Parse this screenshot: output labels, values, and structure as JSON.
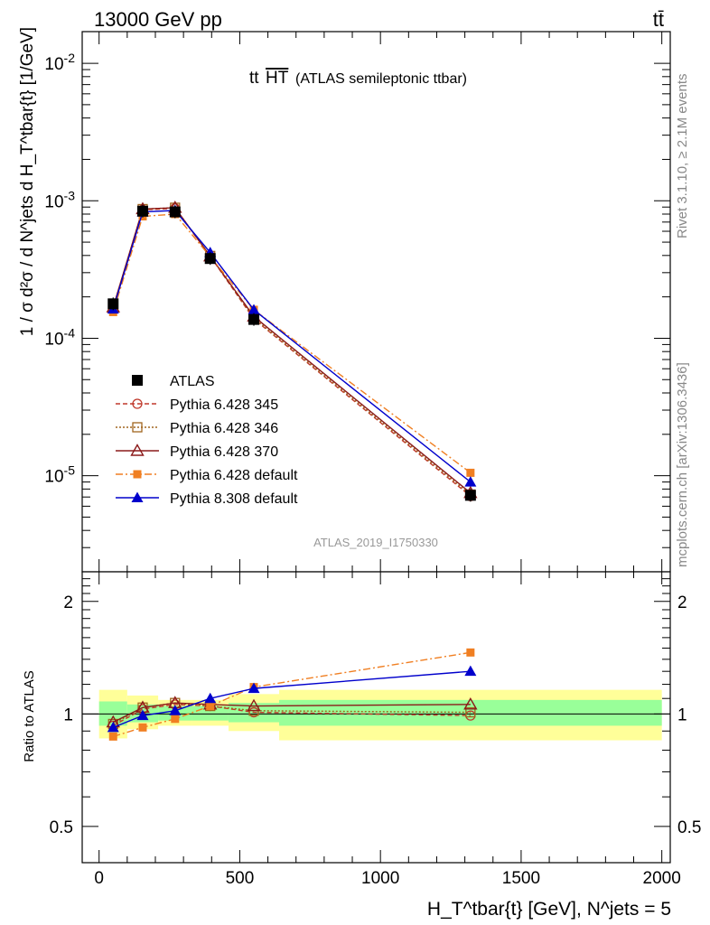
{
  "header": {
    "left": "13000 GeV pp",
    "right": "tt̄"
  },
  "side": {
    "rivet": "Rivet 3.1.10, ≥ 2.1M events",
    "mcplots": "mcplots.cern.ch [arXiv:1306.3436]"
  },
  "chart_data": [
    {
      "type": "line",
      "title_main": "tt",
      "title_over": "HT",
      "title_sub": "(ATLAS semileptonic ttbar)",
      "analysis": "ATLAS_2019_I1750330",
      "ylabel": "1 / σ d²σ / d N^jets d H_T^tbar{t} [1/GeV]",
      "yscale": "log",
      "ylim": [
        2e-06,
        0.017
      ],
      "xlim": [
        -60,
        2030
      ],
      "y_tick_labels": [
        "10^-5",
        "10^-4",
        "10^-3",
        "10^-2"
      ],
      "x": [
        50,
        155,
        270,
        395,
        550,
        1320
      ],
      "series": [
        {
          "name": "ATLAS",
          "color": "#000000",
          "marker": "square-filled",
          "dash": "none",
          "values": [
            0.000178,
            0.00084,
            0.00083,
            0.00038,
            0.000137,
            7.2e-06
          ]
        },
        {
          "name": "Pythia 6.428 345",
          "color": "#c0392b",
          "marker": "circle-open",
          "dash": "5,3",
          "values": [
            0.000165,
            0.00086,
            0.00088,
            0.000395,
            0.000138,
            7.1e-06
          ]
        },
        {
          "name": "Pythia 6.428 346",
          "color": "#a0651e",
          "marker": "square-open",
          "dash": "2,2",
          "values": [
            0.000167,
            0.00087,
            0.00089,
            0.000397,
            0.00014,
            7.3e-06
          ]
        },
        {
          "name": "Pythia 6.428 370",
          "color": "#8b1a1a",
          "marker": "triangle-open",
          "dash": "none",
          "values": [
            0.000168,
            0.00087,
            0.00089,
            0.000395,
            0.000144,
            7.5e-06
          ]
        },
        {
          "name": "Pythia 6.428 default",
          "color": "#f07f22",
          "marker": "square-filled-small",
          "dash": "8,3,2,3",
          "values": [
            0.000155,
            0.00077,
            0.0008,
            0.000392,
            0.000161,
            1.05e-05
          ]
        },
        {
          "name": "Pythia 8.308 default",
          "color": "#0000cc",
          "marker": "triangle-filled",
          "dash": "none",
          "values": [
            0.000163,
            0.00083,
            0.00085,
            0.00042,
            0.000161,
            9e-06
          ]
        }
      ]
    },
    {
      "type": "line",
      "ylabel": "Ratio to ATLAS",
      "xlabel": "H_T^tbar{t} [GeV], N^jets = 5",
      "ylim": [
        0.4,
        2.4
      ],
      "xlim": [
        -60,
        2030
      ],
      "y_ticks": [
        0.5,
        1,
        2
      ],
      "y_tick_labels": [
        "0.5",
        "1",
        "2"
      ],
      "x_ticks": [
        0,
        500,
        1000,
        1500,
        2000
      ],
      "x_tick_labels": [
        "0",
        "500",
        "1000",
        "1500",
        "2000"
      ],
      "bands": [
        {
          "x0": 0,
          "x1": 100,
          "inner": [
            0.93,
            1.08
          ],
          "outer": [
            0.86,
            1.16
          ]
        },
        {
          "x0": 100,
          "x1": 210,
          "inner": [
            0.95,
            1.06
          ],
          "outer": [
            0.91,
            1.12
          ]
        },
        {
          "x0": 210,
          "x1": 330,
          "inner": [
            0.96,
            1.05
          ],
          "outer": [
            0.93,
            1.09
          ]
        },
        {
          "x0": 330,
          "x1": 460,
          "inner": [
            0.96,
            1.05
          ],
          "outer": [
            0.93,
            1.09
          ]
        },
        {
          "x0": 460,
          "x1": 640,
          "inner": [
            0.95,
            1.07
          ],
          "outer": [
            0.9,
            1.13
          ]
        },
        {
          "x0": 640,
          "x1": 2000,
          "inner": [
            0.93,
            1.09
          ],
          "outer": [
            0.85,
            1.16
          ]
        }
      ],
      "series": [
        {
          "name": "Pythia 6.428 345",
          "values": [
            0.93,
            1.03,
            1.06,
            1.05,
            1.01,
            0.99
          ]
        },
        {
          "name": "Pythia 6.428 346",
          "values": [
            0.94,
            1.04,
            1.07,
            1.05,
            1.02,
            1.01
          ]
        },
        {
          "name": "Pythia 6.428 370",
          "values": [
            0.95,
            1.04,
            1.07,
            1.06,
            1.05,
            1.06
          ]
        },
        {
          "name": "Pythia 6.428 default",
          "values": [
            0.87,
            0.92,
            0.97,
            1.05,
            1.18,
            1.46
          ]
        },
        {
          "name": "Pythia 8.308 default",
          "values": [
            0.92,
            0.99,
            1.02,
            1.1,
            1.17,
            1.3
          ]
        }
      ]
    }
  ]
}
